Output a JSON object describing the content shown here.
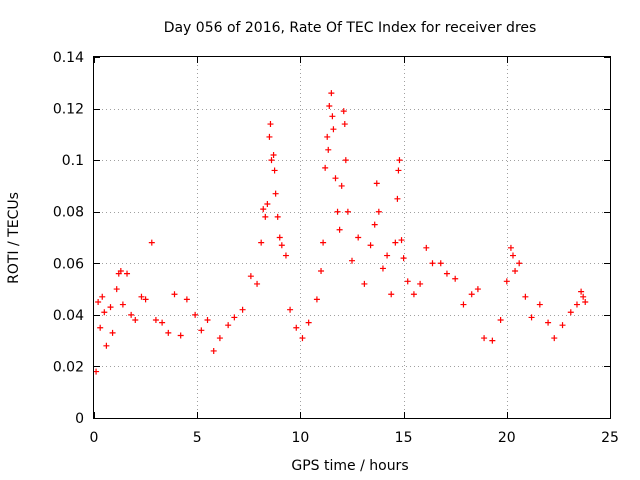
{
  "chart_data": {
    "type": "scatter",
    "title": "Day 056 of 2016, Rate Of TEC Index for receiver dres",
    "xlabel": "GPS time / hours",
    "ylabel": "ROTI / TECUs",
    "xlim": [
      0,
      25
    ],
    "ylim": [
      0,
      0.14
    ],
    "xticks": [
      0,
      5,
      10,
      15,
      20,
      25
    ],
    "xtick_labels": [
      "0",
      "5",
      "10",
      "15",
      "20",
      "25"
    ],
    "yticks": [
      0,
      0.02,
      0.04,
      0.06,
      0.08,
      0.1,
      0.12,
      0.14
    ],
    "ytick_labels": [
      "0",
      "0.02",
      "0.04",
      "0.06",
      "0.08",
      "0.1",
      "0.12",
      "0.14"
    ],
    "grid": true,
    "marker": "+",
    "color": "#ff0000",
    "series": [
      {
        "name": "ROTI",
        "points": [
          [
            0.1,
            0.018
          ],
          [
            0.2,
            0.045
          ],
          [
            0.3,
            0.035
          ],
          [
            0.4,
            0.047
          ],
          [
            0.5,
            0.041
          ],
          [
            0.6,
            0.028
          ],
          [
            0.8,
            0.043
          ],
          [
            0.9,
            0.033
          ],
          [
            1.1,
            0.05
          ],
          [
            1.2,
            0.056
          ],
          [
            1.3,
            0.057
          ],
          [
            1.4,
            0.044
          ],
          [
            1.6,
            0.056
          ],
          [
            1.8,
            0.04
          ],
          [
            2.0,
            0.038
          ],
          [
            2.3,
            0.047
          ],
          [
            2.5,
            0.046
          ],
          [
            2.8,
            0.068
          ],
          [
            3.0,
            0.038
          ],
          [
            3.3,
            0.037
          ],
          [
            3.6,
            0.033
          ],
          [
            3.9,
            0.048
          ],
          [
            4.2,
            0.032
          ],
          [
            4.5,
            0.046
          ],
          [
            4.9,
            0.04
          ],
          [
            5.2,
            0.034
          ],
          [
            5.5,
            0.038
          ],
          [
            5.8,
            0.026
          ],
          [
            6.1,
            0.031
          ],
          [
            6.5,
            0.036
          ],
          [
            6.8,
            0.039
          ],
          [
            7.2,
            0.042
          ],
          [
            7.6,
            0.055
          ],
          [
            7.9,
            0.052
          ],
          [
            8.1,
            0.068
          ],
          [
            8.2,
            0.081
          ],
          [
            8.3,
            0.078
          ],
          [
            8.4,
            0.083
          ],
          [
            8.5,
            0.109
          ],
          [
            8.55,
            0.114
          ],
          [
            8.6,
            0.1
          ],
          [
            8.7,
            0.102
          ],
          [
            8.75,
            0.096
          ],
          [
            8.8,
            0.087
          ],
          [
            8.9,
            0.078
          ],
          [
            9.0,
            0.07
          ],
          [
            9.1,
            0.067
          ],
          [
            9.3,
            0.063
          ],
          [
            9.5,
            0.042
          ],
          [
            9.8,
            0.035
          ],
          [
            10.1,
            0.031
          ],
          [
            10.4,
            0.037
          ],
          [
            10.8,
            0.046
          ],
          [
            11.0,
            0.057
          ],
          [
            11.1,
            0.068
          ],
          [
            11.2,
            0.097
          ],
          [
            11.3,
            0.109
          ],
          [
            11.35,
            0.104
          ],
          [
            11.4,
            0.121
          ],
          [
            11.5,
            0.126
          ],
          [
            11.55,
            0.117
          ],
          [
            11.6,
            0.112
          ],
          [
            11.7,
            0.093
          ],
          [
            11.8,
            0.08
          ],
          [
            11.9,
            0.073
          ],
          [
            12.0,
            0.09
          ],
          [
            12.1,
            0.119
          ],
          [
            12.15,
            0.114
          ],
          [
            12.2,
            0.1
          ],
          [
            12.3,
            0.08
          ],
          [
            12.5,
            0.061
          ],
          [
            12.8,
            0.07
          ],
          [
            13.1,
            0.052
          ],
          [
            13.4,
            0.067
          ],
          [
            13.6,
            0.075
          ],
          [
            13.7,
            0.091
          ],
          [
            13.8,
            0.08
          ],
          [
            14.0,
            0.058
          ],
          [
            14.2,
            0.063
          ],
          [
            14.4,
            0.048
          ],
          [
            14.6,
            0.068
          ],
          [
            14.7,
            0.085
          ],
          [
            14.75,
            0.096
          ],
          [
            14.8,
            0.1
          ],
          [
            14.9,
            0.069
          ],
          [
            15.0,
            0.062
          ],
          [
            15.2,
            0.053
          ],
          [
            15.5,
            0.048
          ],
          [
            15.8,
            0.052
          ],
          [
            16.1,
            0.066
          ],
          [
            16.4,
            0.06
          ],
          [
            16.8,
            0.06
          ],
          [
            17.1,
            0.056
          ],
          [
            17.5,
            0.054
          ],
          [
            17.9,
            0.044
          ],
          [
            18.3,
            0.048
          ],
          [
            18.6,
            0.05
          ],
          [
            18.9,
            0.031
          ],
          [
            19.3,
            0.03
          ],
          [
            19.7,
            0.038
          ],
          [
            20.0,
            0.053
          ],
          [
            20.2,
            0.066
          ],
          [
            20.3,
            0.063
          ],
          [
            20.4,
            0.057
          ],
          [
            20.6,
            0.06
          ],
          [
            20.9,
            0.047
          ],
          [
            21.2,
            0.039
          ],
          [
            21.6,
            0.044
          ],
          [
            22.0,
            0.037
          ],
          [
            22.3,
            0.031
          ],
          [
            22.7,
            0.036
          ],
          [
            23.1,
            0.041
          ],
          [
            23.4,
            0.044
          ],
          [
            23.6,
            0.049
          ],
          [
            23.7,
            0.047
          ],
          [
            23.8,
            0.045
          ]
        ]
      }
    ]
  }
}
